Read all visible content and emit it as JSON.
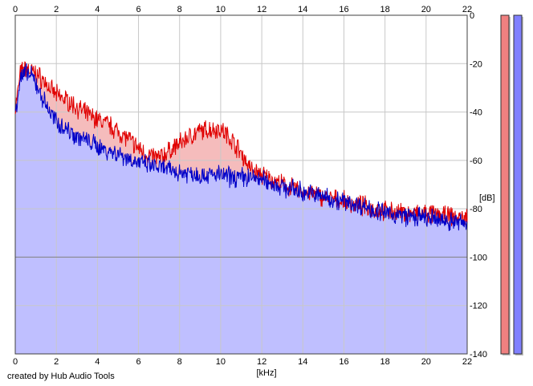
{
  "credit": "created by Hub Audio Tools",
  "colors": {
    "left_line": "#e00000",
    "left_fill": "#f5bcbc",
    "right_line": "#0000c8",
    "right_fill": "#bfbfff",
    "grid": "#c8c8c8",
    "major_grid": "#808080",
    "level_left": "#f08080",
    "level_right": "#8080ff"
  },
  "chart_data": {
    "type": "area",
    "xlabel": "[kHz]",
    "ylabel": "[dB]",
    "xlim": [
      0,
      22
    ],
    "ylim": [
      -140,
      0
    ],
    "x_ticks": [
      "0",
      "2",
      "4",
      "6",
      "8",
      "10",
      "12",
      "14",
      "16",
      "18",
      "20",
      "22"
    ],
    "y_ticks": [
      "0",
      "-20",
      "-40",
      "-60",
      "-80",
      "-100",
      "-120",
      "-140"
    ],
    "grid": true,
    "x": [
      0,
      0.25,
      0.5,
      0.75,
      1,
      1.25,
      1.5,
      1.75,
      2,
      2.5,
      3,
      3.5,
      4,
      4.5,
      5,
      5.5,
      6,
      6.5,
      7,
      7.5,
      8,
      8.5,
      9,
      9.5,
      10,
      10.5,
      11,
      11.5,
      12,
      13,
      14,
      15,
      16,
      17,
      18,
      19,
      20,
      21,
      22
    ],
    "series": [
      {
        "values": [
          -39,
          -24,
          -22,
          -23,
          -24,
          -26,
          -28,
          -31,
          -33,
          -35,
          -38,
          -41,
          -43,
          -45,
          -48,
          -51,
          -55,
          -58,
          -59,
          -56,
          -53,
          -50,
          -48,
          -47,
          -47,
          -51,
          -57,
          -64,
          -66,
          -70,
          -73,
          -75,
          -77,
          -79,
          -81,
          -82,
          -82,
          -83,
          -84
        ]
      },
      {
        "values": [
          -40,
          -26,
          -24,
          -25,
          -28,
          -33,
          -37,
          -41,
          -44,
          -47,
          -50,
          -52,
          -54,
          -56,
          -57,
          -59,
          -61,
          -62,
          -63,
          -64,
          -65,
          -65,
          -66,
          -66,
          -66,
          -67,
          -67,
          -67,
          -68,
          -71,
          -73,
          -75,
          -77,
          -79,
          -82,
          -83,
          -84,
          -85,
          -86
        ]
      }
    ]
  },
  "level_meters": [
    {
      "fill_fraction": 1.0
    },
    {
      "fill_fraction": 1.0
    }
  ]
}
